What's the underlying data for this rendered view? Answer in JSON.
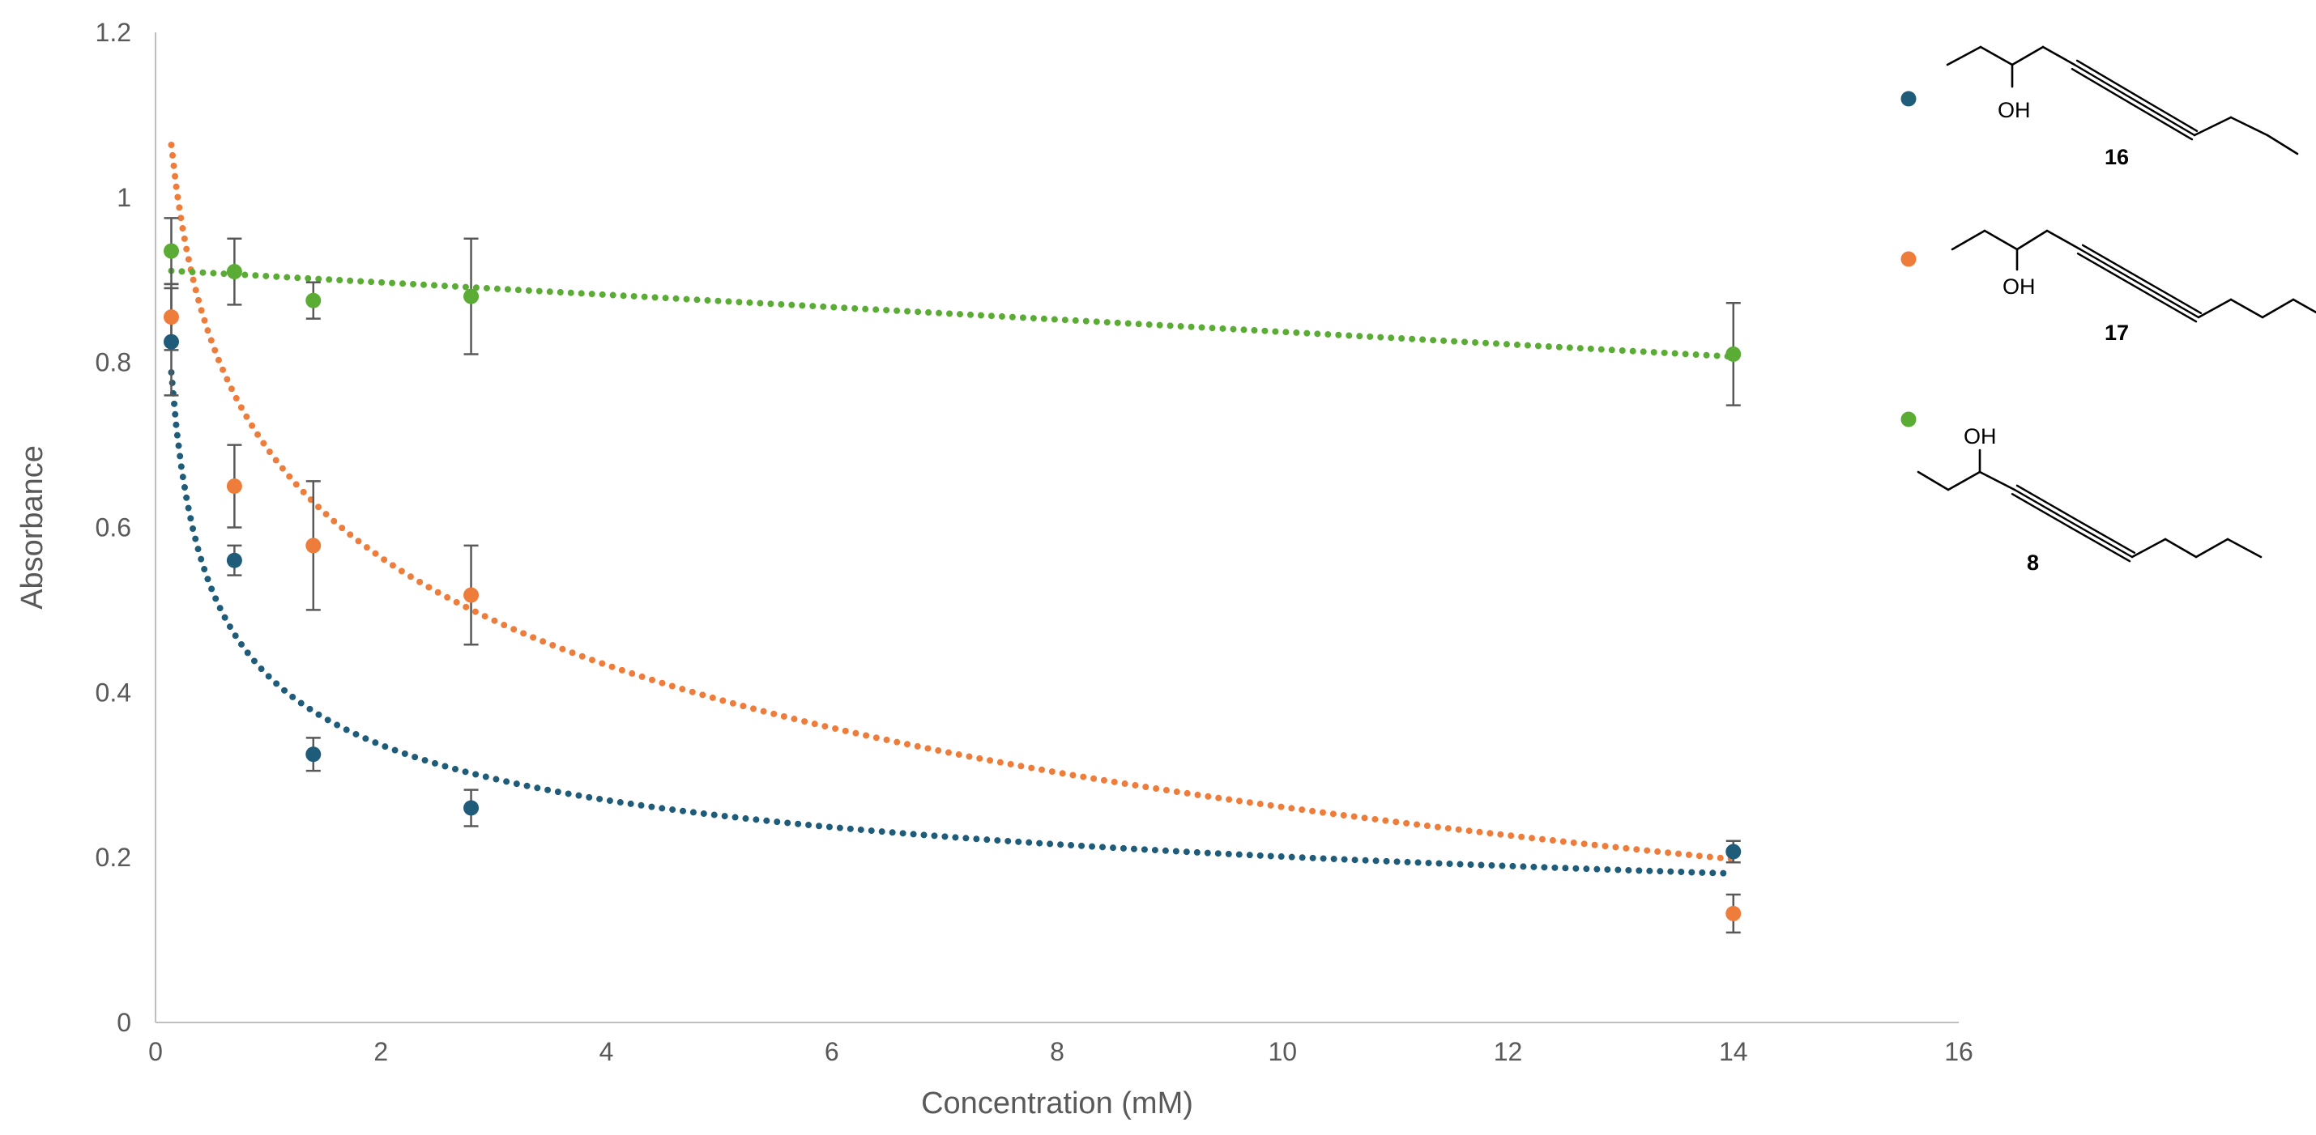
{
  "chart_data": {
    "type": "scatter",
    "xlabel": "Concentration (mM)",
    "ylabel": "Absorbance",
    "xlim": [
      0,
      16
    ],
    "ylim": [
      0,
      1.2
    ],
    "xticks": [
      0,
      2,
      4,
      6,
      8,
      10,
      12,
      14,
      16
    ],
    "yticks": [
      0,
      0.2,
      0.4,
      0.6,
      0.8,
      1,
      1.2
    ],
    "xtick_labels": [
      "0",
      "2",
      "4",
      "6",
      "8",
      "10",
      "12",
      "14",
      "16"
    ],
    "ytick_labels": [
      "0",
      "0.2",
      "0.4",
      "0.6",
      "0.8",
      "1",
      "1.2"
    ],
    "grid": false,
    "legend_position": "right",
    "series": [
      {
        "name": "16",
        "color": "#1f5c7a",
        "x": [
          0.14,
          0.7,
          1.4,
          2.8,
          14
        ],
        "y": [
          0.825,
          0.56,
          0.325,
          0.26,
          0.207
        ],
        "err": [
          0.065,
          0.018,
          0.02,
          0.022,
          0.013
        ],
        "trendline": {
          "type": "power",
          "a": 0.42,
          "b": -0.32
        }
      },
      {
        "name": "17",
        "color": "#ee7d3b",
        "x": [
          0.14,
          0.7,
          1.4,
          2.8,
          14
        ],
        "y": [
          0.855,
          0.65,
          0.578,
          0.518,
          0.132
        ],
        "err": [
          0.04,
          0.05,
          0.078,
          0.06,
          0.023
        ],
        "trendline": {
          "type": "logarithmic",
          "a": 0.694,
          "b": -0.188
        }
      },
      {
        "name": "8",
        "color": "#5aac35",
        "x": [
          0.14,
          0.7,
          1.4,
          2.8,
          14
        ],
        "y": [
          0.935,
          0.91,
          0.875,
          0.88,
          0.81
        ],
        "err": [
          0.04,
          0.04,
          0.022,
          0.07,
          0.062
        ],
        "trendline": {
          "type": "linear",
          "slope": -0.0075,
          "intercept": 0.912
        }
      }
    ],
    "structure_labels": {
      "oh": "OH"
    }
  }
}
